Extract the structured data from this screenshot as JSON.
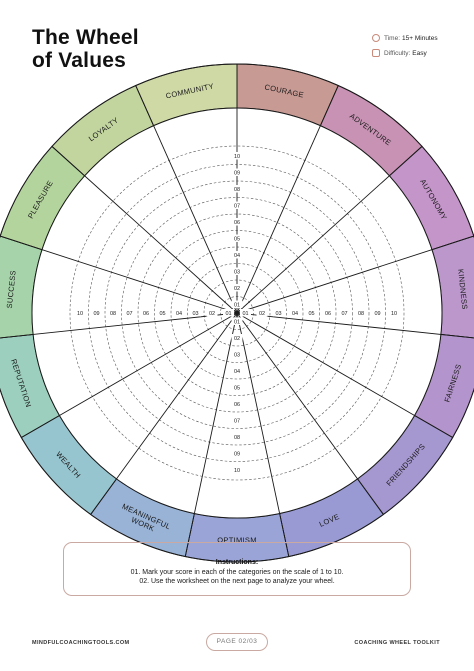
{
  "header": {
    "title_line1": "The Wheel",
    "title_line2": "of Values",
    "time_label": "Time:",
    "time_value": "15+ Minutes",
    "difficulty_label": "Difficulty:",
    "difficulty_value": "Easy"
  },
  "wheel": {
    "segments": [
      {
        "label": "COURAGE",
        "color": "#c89a94"
      },
      {
        "label": "ADVENTURE",
        "color": "#c892b4"
      },
      {
        "label": "AUTONOMY",
        "color": "#c495c9"
      },
      {
        "label": "KINDNESS",
        "color": "#bb97cc"
      },
      {
        "label": "FAIRNESS",
        "color": "#b494cc"
      },
      {
        "label": "FRIENDSHIPS",
        "color": "#a597cf"
      },
      {
        "label": "LOVE",
        "color": "#999ad4"
      },
      {
        "label": "OPTIMISM",
        "color": "#9aa4d6"
      },
      {
        "label": "MEANINGFUL WORK",
        "color": "#99b3d6"
      },
      {
        "label": "WEALTH",
        "color": "#97c5cf"
      },
      {
        "label": "REPUTATION",
        "color": "#9ccfbe"
      },
      {
        "label": "SUCCESS",
        "color": "#a6d3aa"
      },
      {
        "label": "PLEASURE",
        "color": "#b4d49d"
      },
      {
        "label": "LOYALTY",
        "color": "#c2d59f"
      },
      {
        "label": "COMMUNITY",
        "color": "#cfd9a6"
      }
    ],
    "scale": [
      "01",
      "02",
      "03",
      "04",
      "05",
      "06",
      "07",
      "08",
      "09",
      "10"
    ]
  },
  "instructions": {
    "heading": "Instructions:",
    "line1": "01. Mark your score in each of the categories on the scale of 1 to 10.",
    "line2": "02. Use the worksheet on the next page to analyze your wheel."
  },
  "footer": {
    "left": "MINDFULCOACHINGTOOLS.COM",
    "page": "PAGE 02/03",
    "right": "COACHING WHEEL TOOLKIT"
  }
}
